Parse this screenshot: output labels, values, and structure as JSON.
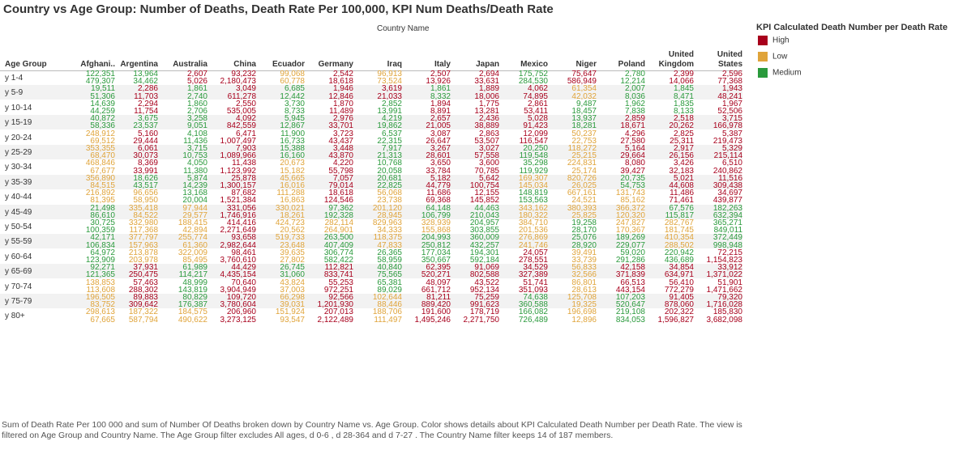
{
  "title": "Country vs Age Group: Number of Deaths, Death Rate Per 100,000, KPI Num Deaths/Death Rate",
  "column_axis_label": "Country Name",
  "row_axis_label": "Age Group",
  "legend": {
    "title": "KPI Calculated Death Number per Death Rate",
    "items": [
      {
        "label": "High",
        "color": "#a8001c"
      },
      {
        "label": "Low",
        "color": "#e0a43a"
      },
      {
        "label": "Medium",
        "color": "#2a9a3c"
      }
    ]
  },
  "caption": "Sum of Death Rate Per 100 000 and sum of Number Of Deaths broken down by Country Name vs. Age Group.  Color shows details about KPI Calculated Death Number per Death Rate. The view is filtered on Age Group and Country Name. The Age Group filter excludes All ages, d 0-6 , d 28-364  and d 7-27 . The Country Name filter keeps 14 of 187 members.",
  "chart_data": {
    "type": "table",
    "measures": [
      "Sum of Death Rate Per 100 000",
      "Sum of Number Of Deaths"
    ],
    "color_map": {
      "H": "High",
      "L": "Low",
      "M": "Medium"
    },
    "countries": [
      {
        "label": "Afghani..",
        "lines": [
          "Afghani.."
        ]
      },
      {
        "label": "Argentina",
        "lines": [
          "Argentina"
        ]
      },
      {
        "label": "Australia",
        "lines": [
          "Australia"
        ]
      },
      {
        "label": "China",
        "lines": [
          "China"
        ]
      },
      {
        "label": "Ecuador",
        "lines": [
          "Ecuador"
        ]
      },
      {
        "label": "Germany",
        "lines": [
          "Germany"
        ]
      },
      {
        "label": "Iraq",
        "lines": [
          "Iraq"
        ]
      },
      {
        "label": "Italy",
        "lines": [
          "Italy"
        ]
      },
      {
        "label": "Japan",
        "lines": [
          "Japan"
        ]
      },
      {
        "label": "Mexico",
        "lines": [
          "Mexico"
        ]
      },
      {
        "label": "Niger",
        "lines": [
          "Niger"
        ]
      },
      {
        "label": "Poland",
        "lines": [
          "Poland"
        ]
      },
      {
        "label": "United Kingdom",
        "lines": [
          "United",
          "Kingdom"
        ]
      },
      {
        "label": "United States",
        "lines": [
          "United",
          "States"
        ]
      }
    ],
    "rows": [
      {
        "age": "y 1-4",
        "rate": [
          "122,351",
          "13,964",
          "2,607",
          "93,232",
          "99,068",
          "2,542",
          "96,913",
          "2,507",
          "2,694",
          "175,752",
          "75,647",
          "2,780",
          "2,399",
          "2,596"
        ],
        "deaths": [
          "479,307",
          "34,462",
          "5,026",
          "2,180,473",
          "60,778",
          "18,618",
          "73,524",
          "13,926",
          "33,631",
          "284,530",
          "586,949",
          "12,214",
          "14,066",
          "77,368"
        ],
        "kpi": [
          "M",
          "M",
          "H",
          "H",
          "L",
          "H",
          "L",
          "H",
          "H",
          "M",
          "H",
          "M",
          "H",
          "H"
        ]
      },
      {
        "age": "y 5-9",
        "rate": [
          "19,511",
          "2,286",
          "1,861",
          "3,049",
          "6,685",
          "1,946",
          "3,619",
          "1,861",
          "1,889",
          "4,062",
          "61,354",
          "2,007",
          "1,845",
          "1,943"
        ],
        "deaths": [
          "51,306",
          "11,703",
          "2,740",
          "611,278",
          "12,442",
          "12,846",
          "21,033",
          "8,332",
          "18,006",
          "74,895",
          "42,032",
          "8,036",
          "8,471",
          "48,241"
        ],
        "kpi": [
          "M",
          "H",
          "M",
          "H",
          "M",
          "H",
          "H",
          "M",
          "H",
          "H",
          "L",
          "M",
          "M",
          "H"
        ]
      },
      {
        "age": "y 10-14",
        "rate": [
          "14,639",
          "2,294",
          "1,860",
          "2,550",
          "3,730",
          "1,870",
          "2,852",
          "1,894",
          "1,775",
          "2,861",
          "9,487",
          "1,962",
          "1,835",
          "1,967"
        ],
        "deaths": [
          "44,259",
          "11,754",
          "2,706",
          "535,005",
          "8,733",
          "11,489",
          "13,991",
          "8,891",
          "13,281",
          "53,411",
          "18,457",
          "7,838",
          "8,133",
          "52,506"
        ],
        "kpi": [
          "M",
          "H",
          "M",
          "H",
          "M",
          "H",
          "M",
          "H",
          "H",
          "H",
          "M",
          "M",
          "M",
          "H"
        ]
      },
      {
        "age": "y 15-19",
        "rate": [
          "40,872",
          "3,675",
          "3,258",
          "4,092",
          "5,945",
          "2,976",
          "4,219",
          "2,657",
          "2,436",
          "5,028",
          "13,937",
          "2,859",
          "2,518",
          "3,715"
        ],
        "deaths": [
          "58,336",
          "23,537",
          "9,051",
          "842,559",
          "12,867",
          "33,701",
          "19,862",
          "21,005",
          "38,889",
          "91,423",
          "18,281",
          "18,671",
          "20,262",
          "166,978"
        ],
        "kpi": [
          "M",
          "M",
          "M",
          "H",
          "M",
          "H",
          "M",
          "H",
          "H",
          "H",
          "M",
          "H",
          "H",
          "H"
        ]
      },
      {
        "age": "y 20-24",
        "rate": [
          "248,912",
          "5,160",
          "4,108",
          "6,471",
          "11,900",
          "3,723",
          "6,537",
          "3,087",
          "2,863",
          "12,099",
          "50,237",
          "4,296",
          "2,825",
          "5,387"
        ],
        "deaths": [
          "69,512",
          "29,444",
          "11,436",
          "1,007,497",
          "16,733",
          "43,437",
          "22,315",
          "26,647",
          "53,507",
          "116,547",
          "22,753",
          "27,580",
          "25,311",
          "219,473"
        ],
        "kpi": [
          "L",
          "H",
          "M",
          "H",
          "M",
          "H",
          "M",
          "H",
          "H",
          "H",
          "L",
          "H",
          "H",
          "H"
        ]
      },
      {
        "age": "y 25-29",
        "rate": [
          "353,355",
          "6,061",
          "3,715",
          "7,903",
          "15,388",
          "3,448",
          "7,917",
          "3,267",
          "3,027",
          "20,250",
          "118,272",
          "5,164",
          "2,917",
          "5,329"
        ],
        "deaths": [
          "68,470",
          "30,073",
          "10,753",
          "1,089,966",
          "16,160",
          "43,870",
          "21,313",
          "28,601",
          "57,558",
          "119,548",
          "25,215",
          "29,664",
          "26,156",
          "215,114"
        ],
        "kpi": [
          "L",
          "H",
          "M",
          "H",
          "M",
          "H",
          "M",
          "H",
          "H",
          "M",
          "L",
          "H",
          "H",
          "H"
        ]
      },
      {
        "age": "y 30-34",
        "rate": [
          "468,846",
          "8,369",
          "4,050",
          "11,438",
          "20,673",
          "4,220",
          "10,768",
          "3,650",
          "3,600",
          "35,298",
          "224,831",
          "8,080",
          "3,426",
          "6,510"
        ],
        "deaths": [
          "67,677",
          "33,991",
          "11,380",
          "1,123,992",
          "15,182",
          "55,798",
          "20,058",
          "33,784",
          "70,785",
          "119,929",
          "25,174",
          "39,427",
          "32,183",
          "240,862"
        ],
        "kpi": [
          "L",
          "H",
          "M",
          "H",
          "L",
          "H",
          "M",
          "H",
          "H",
          "M",
          "L",
          "H",
          "H",
          "H"
        ]
      },
      {
        "age": "y 35-39",
        "rate": [
          "356,890",
          "18,626",
          "5,874",
          "25,878",
          "45,665",
          "7,057",
          "20,681",
          "5,182",
          "5,642",
          "169,307",
          "820,726",
          "20,735",
          "5,021",
          "11,516"
        ],
        "deaths": [
          "84,515",
          "43,517",
          "14,239",
          "1,300,157",
          "16,016",
          "79,014",
          "22,825",
          "44,779",
          "100,754",
          "145,034",
          "26,025",
          "54,753",
          "44,608",
          "309,438"
        ],
        "kpi": [
          "L",
          "M",
          "M",
          "H",
          "L",
          "H",
          "M",
          "H",
          "H",
          "L",
          "L",
          "M",
          "H",
          "H"
        ]
      },
      {
        "age": "y 40-44",
        "rate": [
          "216,892",
          "96,656",
          "13,168",
          "87,682",
          "111,288",
          "18,618",
          "56,068",
          "11,686",
          "12,155",
          "148,819",
          "667,161",
          "131,743",
          "11,486",
          "34,697"
        ],
        "deaths": [
          "81,395",
          "58,950",
          "20,004",
          "1,521,384",
          "16,863",
          "124,546",
          "23,738",
          "69,368",
          "145,852",
          "153,563",
          "24,521",
          "85,162",
          "71,461",
          "439,877"
        ],
        "kpi": [
          "L",
          "L",
          "M",
          "H",
          "L",
          "H",
          "L",
          "H",
          "H",
          "M",
          "L",
          "L",
          "H",
          "H"
        ]
      },
      {
        "age": "y 45-49",
        "rate": [
          "21,498",
          "335,418",
          "97,944",
          "331,056",
          "330,021",
          "97,362",
          "201,120",
          "64,148",
          "44,463",
          "343,162",
          "380,393",
          "366,372",
          "67,576",
          "182,263"
        ],
        "deaths": [
          "86,610",
          "84,522",
          "29,577",
          "1,746,916",
          "18,261",
          "192,328",
          "28,945",
          "106,799",
          "210,043",
          "180,322",
          "25,825",
          "120,320",
          "115,817",
          "632,394"
        ],
        "kpi": [
          "M",
          "L",
          "L",
          "H",
          "L",
          "M",
          "L",
          "M",
          "M",
          "L",
          "L",
          "L",
          "M",
          "M"
        ]
      },
      {
        "age": "y 50-54",
        "rate": [
          "30,725",
          "332,980",
          "188,415",
          "414,416",
          "424,723",
          "282,114",
          "829,963",
          "328,939",
          "204,957",
          "384,710",
          "19,258",
          "247,827",
          "282,767",
          "365,271"
        ],
        "deaths": [
          "100,359",
          "117,368",
          "42,894",
          "2,271,649",
          "20,562",
          "264,901",
          "34,333",
          "155,868",
          "303,855",
          "201,536",
          "28,170",
          "170,367",
          "181,745",
          "849,011"
        ],
        "kpi": [
          "M",
          "L",
          "L",
          "H",
          "L",
          "L",
          "L",
          "L",
          "M",
          "L",
          "M",
          "L",
          "L",
          "M"
        ]
      },
      {
        "age": "y 55-59",
        "rate": [
          "42,171",
          "377,797",
          "255,774",
          "93,658",
          "519,733",
          "263,500",
          "118,375",
          "204,993",
          "360,009",
          "276,869",
          "25,076",
          "189,269",
          "410,354",
          "372,449"
        ],
        "deaths": [
          "106,834",
          "157,963",
          "61,360",
          "2,982,644",
          "23,648",
          "407,409",
          "47,833",
          "250,812",
          "432,257",
          "241,746",
          "28,920",
          "229,077",
          "288,502",
          "998,948"
        ],
        "kpi": [
          "M",
          "L",
          "L",
          "H",
          "L",
          "M",
          "L",
          "M",
          "M",
          "L",
          "M",
          "M",
          "L",
          "M"
        ]
      },
      {
        "age": "y 60-64",
        "rate": [
          "64,972",
          "213,878",
          "322,009",
          "98,461",
          "39,635",
          "306,774",
          "26,365",
          "177,034",
          "194,301",
          "24,057",
          "39,491",
          "59,020",
          "220,942",
          "72,215"
        ],
        "deaths": [
          "123,909",
          "203,978",
          "85,495",
          "3,760,610",
          "27,802",
          "582,422",
          "58,959",
          "350,667",
          "592,184",
          "278,551",
          "33,739",
          "291,286",
          "436,689",
          "1,154,823"
        ],
        "kpi": [
          "M",
          "L",
          "L",
          "H",
          "L",
          "M",
          "M",
          "M",
          "M",
          "H",
          "L",
          "M",
          "M",
          "H"
        ]
      },
      {
        "age": "y 65-69",
        "rate": [
          "92,271",
          "37,931",
          "61,989",
          "44,429",
          "26,745",
          "112,821",
          "40,840",
          "62,395",
          "91,069",
          "34,529",
          "56,833",
          "42,158",
          "34,854",
          "33,912"
        ],
        "deaths": [
          "121,365",
          "250,475",
          "114,217",
          "4,435,154",
          "31,060",
          "833,741",
          "75,565",
          "520,271",
          "802,588",
          "327,389",
          "32,566",
          "371,839",
          "634,971",
          "1,371,022"
        ],
        "kpi": [
          "M",
          "H",
          "M",
          "H",
          "M",
          "H",
          "M",
          "H",
          "H",
          "H",
          "L",
          "H",
          "H",
          "H"
        ]
      },
      {
        "age": "y 70-74",
        "rate": [
          "138,853",
          "57,463",
          "48,999",
          "70,640",
          "43,824",
          "55,253",
          "65,381",
          "48,097",
          "43,522",
          "51,741",
          "86,801",
          "66,513",
          "56,410",
          "51,901"
        ],
        "deaths": [
          "113,608",
          "288,302",
          "143,819",
          "3,904,949",
          "37,003",
          "972,251",
          "89,029",
          "661,712",
          "952,134",
          "351,093",
          "28,613",
          "443,154",
          "772,279",
          "1,471,662"
        ],
        "kpi": [
          "L",
          "H",
          "M",
          "H",
          "L",
          "H",
          "M",
          "H",
          "H",
          "H",
          "L",
          "H",
          "H",
          "H"
        ]
      },
      {
        "age": "y 75-79",
        "rate": [
          "196,505",
          "89,883",
          "80,829",
          "109,720",
          "66,298",
          "92,566",
          "102,644",
          "81,211",
          "75,259",
          "74,638",
          "125,708",
          "107,203",
          "91,405",
          "79,320"
        ],
        "deaths": [
          "83,752",
          "309,642",
          "176,387",
          "3,780,604",
          "39,031",
          "1,201,930",
          "88,446",
          "889,420",
          "991,623",
          "360,588",
          "19,325",
          "520,647",
          "878,060",
          "1,716,028"
        ],
        "kpi": [
          "L",
          "H",
          "M",
          "H",
          "L",
          "H",
          "L",
          "H",
          "H",
          "M",
          "L",
          "M",
          "H",
          "H"
        ]
      },
      {
        "age": "y 80+",
        "rate": [
          "298,613",
          "187,322",
          "184,575",
          "206,960",
          "151,924",
          "207,013",
          "188,706",
          "191,600",
          "178,719",
          "166,082",
          "196,698",
          "219,108",
          "202,322",
          "185,830"
        ],
        "deaths": [
          "67,665",
          "587,794",
          "490,622",
          "3,273,125",
          "93,547",
          "2,122,489",
          "111,497",
          "1,495,246",
          "2,271,750",
          "726,489",
          "12,896",
          "834,053",
          "1,596,827",
          "3,682,098"
        ],
        "kpi": [
          "L",
          "L",
          "L",
          "H",
          "L",
          "H",
          "L",
          "H",
          "H",
          "M",
          "L",
          "M",
          "H",
          "H"
        ]
      }
    ]
  }
}
